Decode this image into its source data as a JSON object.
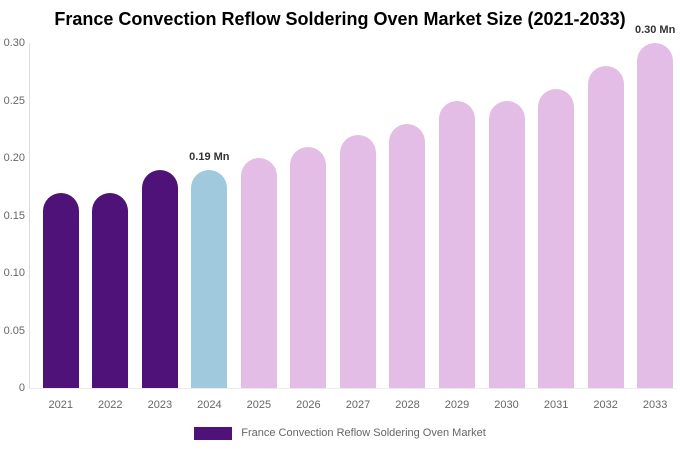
{
  "chart_data": {
    "type": "bar",
    "title": "France Convection Reflow Soldering Oven Market Size (2021-2033)",
    "unit": "Mn",
    "categories": [
      "2021",
      "2022",
      "2023",
      "2024",
      "2025",
      "2026",
      "2027",
      "2028",
      "2029",
      "2030",
      "2031",
      "2032",
      "2033"
    ],
    "values": [
      0.17,
      0.17,
      0.19,
      0.19,
      0.2,
      0.21,
      0.22,
      0.23,
      0.25,
      0.25,
      0.26,
      0.28,
      0.3
    ],
    "bar_colors": [
      "#4E1279",
      "#4E1279",
      "#4E1279",
      "#A0C9DE",
      "#E3BDE6",
      "#E3BDE6",
      "#E3BDE6",
      "#E3BDE6",
      "#E3BDE6",
      "#E3BDE6",
      "#E3BDE6",
      "#E3BDE6",
      "#E3BDE6"
    ],
    "annotations": [
      {
        "category": "2024",
        "text": "0.19 Mn"
      },
      {
        "category": "2033",
        "text": "0.30 Mn"
      }
    ],
    "xlabel": "",
    "ylabel": "",
    "ylim": [
      0,
      0.3
    ],
    "yticks": [
      {
        "value": 0.3,
        "label": "0.30"
      },
      {
        "value": 0.25,
        "label": "0.25"
      },
      {
        "value": 0.2,
        "label": "0.20"
      },
      {
        "value": 0.15,
        "label": "0.15"
      },
      {
        "value": 0.1,
        "label": "0.10"
      },
      {
        "value": 0.05,
        "label": "0.05"
      },
      {
        "value": 0.0,
        "label": "0"
      }
    ],
    "grid": false,
    "legend_position": "bottom",
    "legend": [
      {
        "label": "France Convection Reflow Soldering Oven Market",
        "color": "#4E1279"
      }
    ]
  },
  "colors": {
    "historical_bar": "#4E1279",
    "current_year_bar": "#A0C9DE",
    "forecast_bar": "#E3BDE6",
    "title_text": "#000000",
    "axis_text": "#666666",
    "annotation_text": "#333333",
    "axis_line": "#DDDDDD",
    "background": "#FFFFFF"
  }
}
